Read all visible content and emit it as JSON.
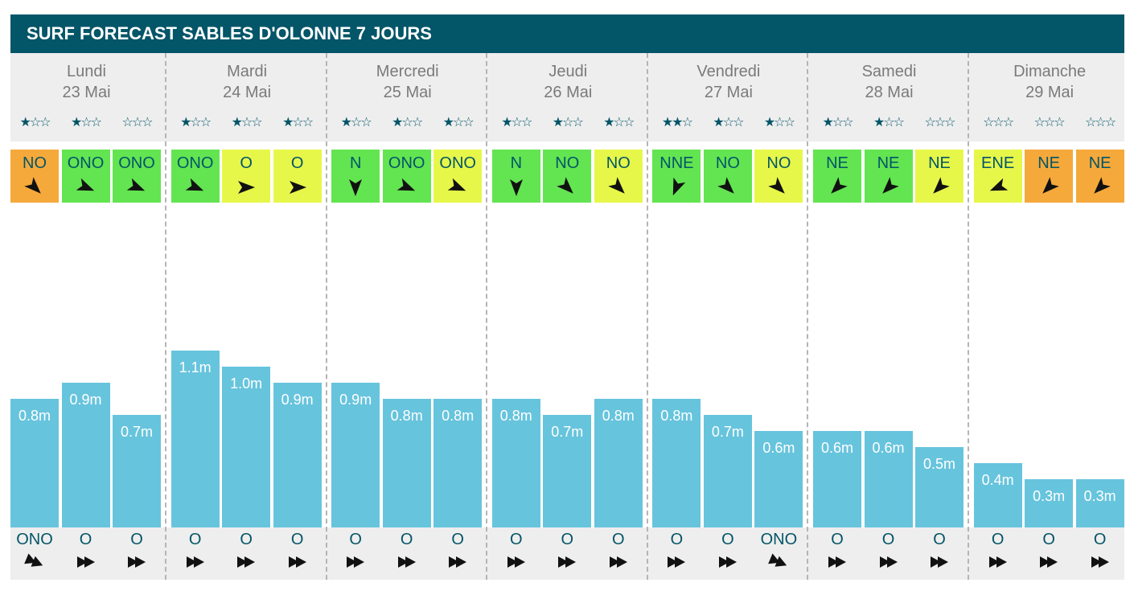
{
  "title": "SURF FORECAST SABLES D'OLONNE 7 JOURS",
  "colors": {
    "header": "#035568",
    "bar": "#67c4dd",
    "wind_green": "#63e451",
    "wind_yellow": "#e6f74a",
    "wind_orange": "#f5a93a",
    "star": "#035568"
  },
  "chart_data": {
    "type": "bar",
    "unit": "m",
    "ylim": [
      0,
      1.1
    ],
    "days": [
      {
        "name": "Lundi",
        "date": "23 Mai",
        "slots": [
          {
            "stars": 1,
            "wind": "NO",
            "wind_rating": "orange",
            "wind_deg": 315,
            "height": 0.8,
            "height_label": "0.8m",
            "swell": "ONO",
            "swell_deg": 292.5
          },
          {
            "stars": 1,
            "wind": "ONO",
            "wind_rating": "green",
            "wind_deg": 292.5,
            "height": 0.9,
            "height_label": "0.9m",
            "swell": "O",
            "swell_deg": 270
          },
          {
            "stars": 0,
            "wind": "ONO",
            "wind_rating": "green",
            "wind_deg": 292.5,
            "height": 0.7,
            "height_label": "0.7m",
            "swell": "O",
            "swell_deg": 270
          }
        ]
      },
      {
        "name": "Mardi",
        "date": "24 Mai",
        "slots": [
          {
            "stars": 1,
            "wind": "ONO",
            "wind_rating": "green",
            "wind_deg": 292.5,
            "height": 1.1,
            "height_label": "1.1m",
            "swell": "O",
            "swell_deg": 270
          },
          {
            "stars": 1,
            "wind": "O",
            "wind_rating": "yellow",
            "wind_deg": 270,
            "height": 1.0,
            "height_label": "1.0m",
            "swell": "O",
            "swell_deg": 270
          },
          {
            "stars": 1,
            "wind": "O",
            "wind_rating": "yellow",
            "wind_deg": 270,
            "height": 0.9,
            "height_label": "0.9m",
            "swell": "O",
            "swell_deg": 270
          }
        ]
      },
      {
        "name": "Mercredi",
        "date": "25 Mai",
        "slots": [
          {
            "stars": 1,
            "wind": "N",
            "wind_rating": "green",
            "wind_deg": 0,
            "height": 0.9,
            "height_label": "0.9m",
            "swell": "O",
            "swell_deg": 270
          },
          {
            "stars": 1,
            "wind": "ONO",
            "wind_rating": "green",
            "wind_deg": 292.5,
            "height": 0.8,
            "height_label": "0.8m",
            "swell": "O",
            "swell_deg": 270
          },
          {
            "stars": 1,
            "wind": "ONO",
            "wind_rating": "yellow",
            "wind_deg": 292.5,
            "height": 0.8,
            "height_label": "0.8m",
            "swell": "O",
            "swell_deg": 270
          }
        ]
      },
      {
        "name": "Jeudi",
        "date": "26 Mai",
        "slots": [
          {
            "stars": 1,
            "wind": "N",
            "wind_rating": "green",
            "wind_deg": 0,
            "height": 0.8,
            "height_label": "0.8m",
            "swell": "O",
            "swell_deg": 270
          },
          {
            "stars": 1,
            "wind": "NO",
            "wind_rating": "green",
            "wind_deg": 315,
            "height": 0.7,
            "height_label": "0.7m",
            "swell": "O",
            "swell_deg": 270
          },
          {
            "stars": 1,
            "wind": "NO",
            "wind_rating": "yellow",
            "wind_deg": 315,
            "height": 0.8,
            "height_label": "0.8m",
            "swell": "O",
            "swell_deg": 270
          }
        ]
      },
      {
        "name": "Vendredi",
        "date": "27 Mai",
        "slots": [
          {
            "stars": 2,
            "wind": "NNE",
            "wind_rating": "green",
            "wind_deg": 22.5,
            "height": 0.8,
            "height_label": "0.8m",
            "swell": "O",
            "swell_deg": 270
          },
          {
            "stars": 1,
            "wind": "NO",
            "wind_rating": "green",
            "wind_deg": 315,
            "height": 0.7,
            "height_label": "0.7m",
            "swell": "O",
            "swell_deg": 270
          },
          {
            "stars": 1,
            "wind": "NO",
            "wind_rating": "yellow",
            "wind_deg": 315,
            "height": 0.6,
            "height_label": "0.6m",
            "swell": "ONO",
            "swell_deg": 292.5
          }
        ]
      },
      {
        "name": "Samedi",
        "date": "28 Mai",
        "slots": [
          {
            "stars": 1,
            "wind": "NE",
            "wind_rating": "green",
            "wind_deg": 45,
            "height": 0.6,
            "height_label": "0.6m",
            "swell": "O",
            "swell_deg": 270
          },
          {
            "stars": 1,
            "wind": "NE",
            "wind_rating": "green",
            "wind_deg": 45,
            "height": 0.6,
            "height_label": "0.6m",
            "swell": "O",
            "swell_deg": 270
          },
          {
            "stars": 0,
            "wind": "NE",
            "wind_rating": "yellow",
            "wind_deg": 45,
            "height": 0.5,
            "height_label": "0.5m",
            "swell": "O",
            "swell_deg": 270
          }
        ]
      },
      {
        "name": "Dimanche",
        "date": "29 Mai",
        "slots": [
          {
            "stars": 0,
            "wind": "ENE",
            "wind_rating": "yellow",
            "wind_deg": 67.5,
            "height": 0.4,
            "height_label": "0.4m",
            "swell": "O",
            "swell_deg": 270
          },
          {
            "stars": 0,
            "wind": "NE",
            "wind_rating": "orange",
            "wind_deg": 45,
            "height": 0.3,
            "height_label": "0.3m",
            "swell": "O",
            "swell_deg": 270
          },
          {
            "stars": 0,
            "wind": "NE",
            "wind_rating": "orange",
            "wind_deg": 45,
            "height": 0.3,
            "height_label": "0.3m",
            "swell": "O",
            "swell_deg": 270
          }
        ]
      }
    ]
  }
}
